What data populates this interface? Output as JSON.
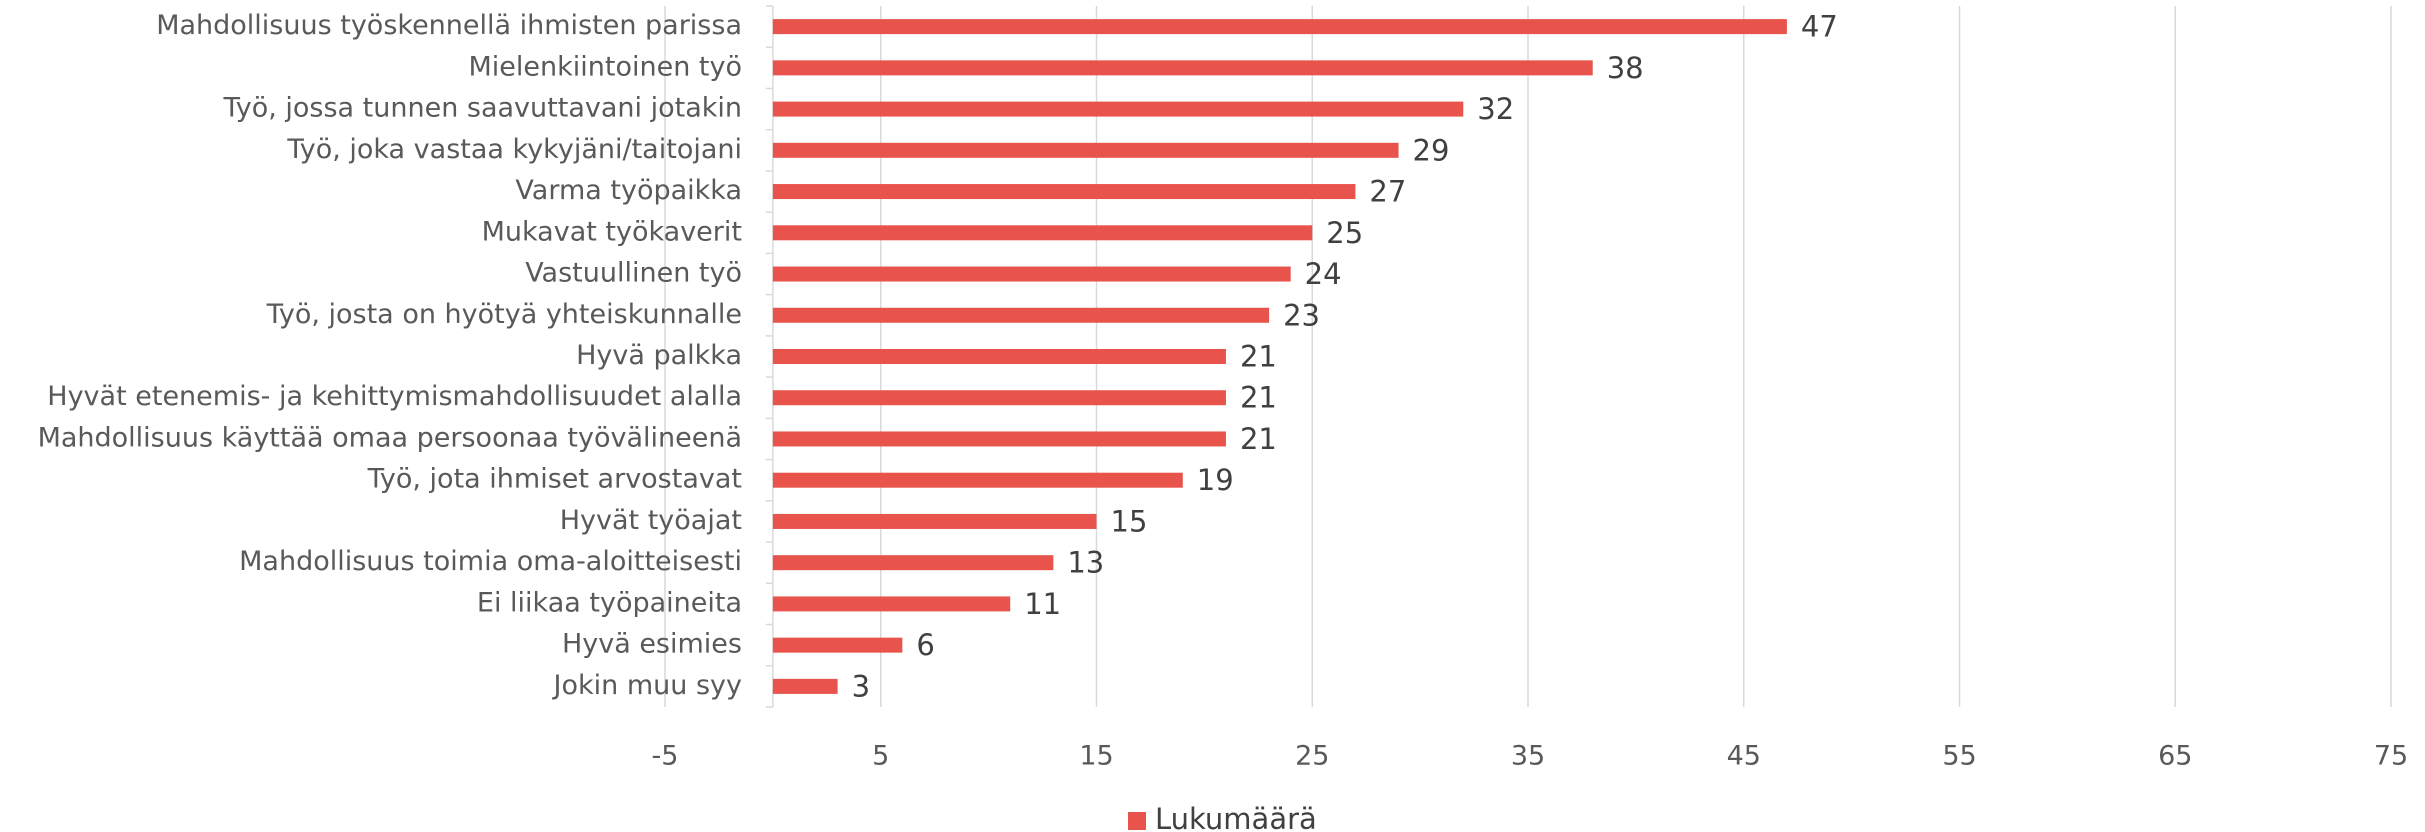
{
  "chart_data": {
    "type": "bar",
    "orientation": "horizontal",
    "categories": [
      "Mahdollisuus työskennellä ihmisten parissa",
      "Mielenkiintoinen työ",
      "Työ, jossa tunnen saavuttavani jotakin",
      "Työ, joka vastaa kykyjäni/taitojani",
      "Varma työpaikka",
      "Mukavat työkaverit",
      "Vastuullinen työ",
      "Työ, josta on hyötyä yhteiskunnalle",
      "Hyvä palkka",
      "Hyvät etenemis- ja kehittymismahdollisuudet alalla",
      "Mahdollisuus käyttää omaa persoonaa työvälineenä",
      "Työ, jota ihmiset arvostavat",
      "Hyvät työajat",
      "Mahdollisuus toimia oma-aloitteisesti",
      "Ei liikaa työpaineita",
      "Hyvä esimies",
      "Jokin muu syy"
    ],
    "series": [
      {
        "name": "Lukumäärä",
        "color": "#e8534b",
        "values": [
          47,
          38,
          32,
          29,
          27,
          25,
          24,
          23,
          21,
          21,
          21,
          19,
          15,
          13,
          11,
          6,
          3
        ]
      }
    ],
    "xlim": [
      -5,
      75
    ],
    "xticks": [
      -5,
      5,
      15,
      25,
      35,
      45,
      55,
      65,
      75
    ],
    "grid": true,
    "legend": "bottom"
  }
}
